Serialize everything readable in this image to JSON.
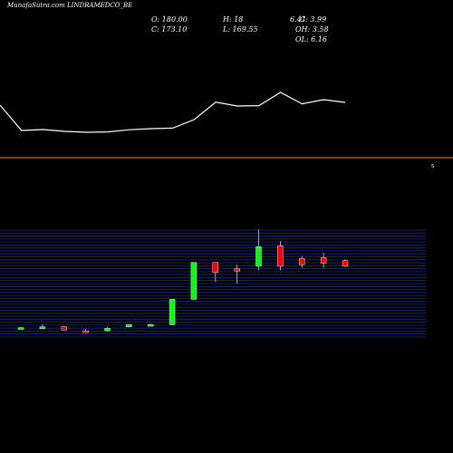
{
  "title": "MunafaSutra.com LINDRAMEDCO_BE",
  "ohlc": {
    "open": "O: 180.00",
    "close": "C: 173.10",
    "high": "H: 18",
    "low": "L: 169.55",
    "value": "6.41",
    "change": "C: 3.99",
    "oh": "OH: 3.58",
    "ol": "OL: 6.16"
  },
  "separator_label": "S",
  "colors": {
    "background": "#000000",
    "up": "#00ff00",
    "down": "#ff0000",
    "separator": "#ff8c00",
    "grid": "#1a2a8a",
    "line": "#ffffff"
  },
  "chart_data": [
    {
      "type": "line",
      "title": "",
      "x": [
        1,
        2,
        3,
        4,
        5,
        6,
        7,
        8,
        9,
        10,
        11,
        12,
        13,
        14,
        15,
        16,
        17
      ],
      "series": [
        {
          "values": [
            22,
            8,
            8.5,
            7.5,
            7,
            7.2,
            8.4,
            9,
            9.3,
            14,
            23.6,
            21.5,
            21.7,
            29,
            22.7,
            25,
            23.5
          ]
        }
      ],
      "ylim": [
        0,
        50
      ]
    },
    {
      "type": "candlestick",
      "title": "",
      "candles": [
        {
          "open": 12,
          "high": 13,
          "low": 11,
          "close": 12
        },
        {
          "open": 11,
          "high": 17,
          "low": 10,
          "close": 13
        },
        {
          "open": 13,
          "high": 14,
          "low": 9,
          "close": 9
        },
        {
          "open": 8,
          "high": 10,
          "low": 7,
          "close": 7
        },
        {
          "open": 8,
          "high": 13,
          "low": 7,
          "close": 11
        },
        {
          "open": 13,
          "high": 16,
          "low": 13,
          "close": 16
        },
        {
          "open": 15,
          "high": 17,
          "low": 14,
          "close": 16
        },
        {
          "open": 16,
          "high": 48,
          "low": 15,
          "close": 48
        },
        {
          "open": 48,
          "high": 95,
          "low": 47,
          "close": 95
        },
        {
          "open": 95,
          "high": 95,
          "low": 70,
          "close": 82
        },
        {
          "open": 87,
          "high": 92,
          "low": 68,
          "close": 84
        },
        {
          "open": 90,
          "high": 137,
          "low": 85,
          "close": 115
        },
        {
          "open": 116,
          "high": 122,
          "low": 85,
          "close": 90
        },
        {
          "open": 100,
          "high": 103,
          "low": 88,
          "close": 92
        },
        {
          "open": 101,
          "high": 107,
          "low": 88,
          "close": 94
        },
        {
          "open": 97,
          "high": 99,
          "low": 89,
          "close": 90
        }
      ],
      "ylim": [
        0,
        136
      ],
      "grid": true
    }
  ]
}
